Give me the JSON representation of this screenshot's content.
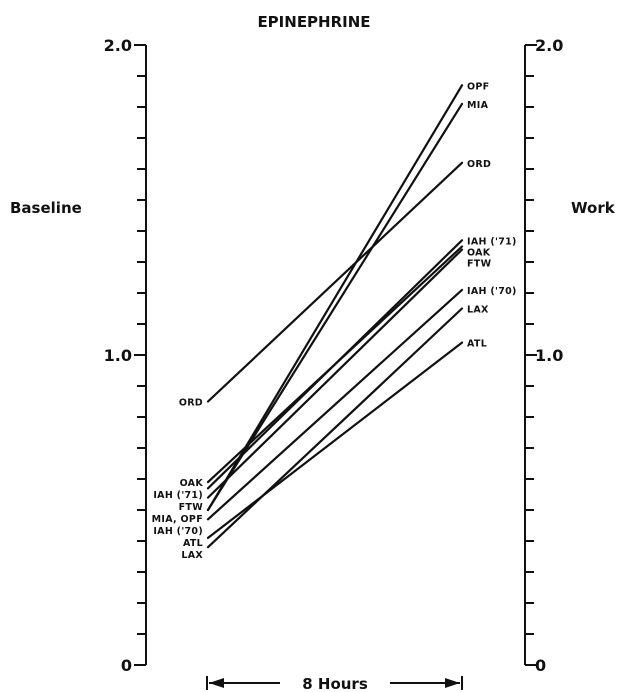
{
  "chart_data": {
    "type": "line",
    "title": "EPINEPHRINE",
    "xlabel": "8 Hours",
    "left_axis_label": "Baseline",
    "right_axis_label": "Work",
    "ylim": [
      0,
      2.0
    ],
    "tick_labels": [
      "0",
      "1.0",
      "2.0"
    ],
    "minor_tick_step": 0.1,
    "categories": [
      "Baseline",
      "Work"
    ],
    "series": [
      {
        "name": "OPF",
        "values": [
          0.5,
          1.87
        ]
      },
      {
        "name": "MIA",
        "values": [
          0.5,
          1.81
        ]
      },
      {
        "name": "ORD",
        "values": [
          0.85,
          1.62
        ]
      },
      {
        "name": "IAH ('71)",
        "values": [
          0.57,
          1.37
        ]
      },
      {
        "name": "OAK",
        "values": [
          0.59,
          1.35
        ]
      },
      {
        "name": "FTW",
        "values": [
          0.54,
          1.34
        ]
      },
      {
        "name": "IAH ('70)",
        "values": [
          0.47,
          1.21
        ]
      },
      {
        "name": "LAX",
        "values": [
          0.38,
          1.15
        ]
      },
      {
        "name": "ATL",
        "values": [
          0.41,
          1.04
        ]
      }
    ],
    "left_labels": [
      "ORD",
      "OAK",
      "IAH ('71)",
      "FTW",
      "MIA, OPF",
      "IAH ('70)",
      "ATL",
      "LAX"
    ],
    "right_labels": [
      "OPF",
      "MIA",
      "ORD",
      "IAH ('71)",
      "OAK",
      "FTW",
      "IAH ('70)",
      "LAX",
      "ATL"
    ],
    "grid": false,
    "legend": "none"
  }
}
